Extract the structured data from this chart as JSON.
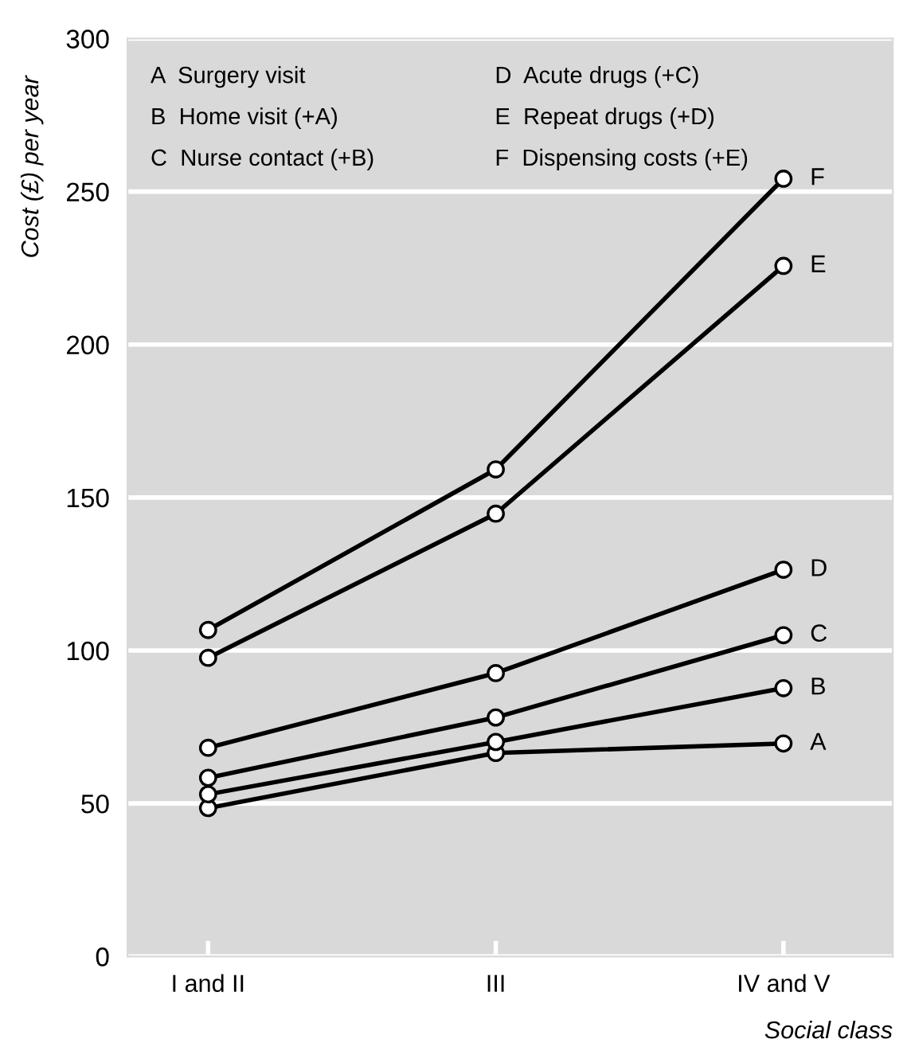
{
  "chart_data": {
    "type": "line",
    "ylabel": "Cost (£) per year",
    "xlabel": "Social class",
    "categories": [
      "I and II",
      "III",
      "IV and V"
    ],
    "series": [
      {
        "name": "A",
        "color": "#000000",
        "values": [
          48.5,
          66.5,
          69.6
        ]
      },
      {
        "name": "B",
        "color": "#000000",
        "values": [
          53,
          70.1,
          87.7
        ]
      },
      {
        "name": "C",
        "color": "#000000",
        "values": [
          58.4,
          78.1,
          105
        ]
      },
      {
        "name": "D",
        "color": "#000000",
        "values": [
          68.2,
          92.6,
          126.4
        ]
      },
      {
        "name": "E",
        "color": "#000000",
        "values": [
          97.6,
          144.7,
          225.7
        ]
      },
      {
        "name": "F",
        "color": "#000000",
        "values": [
          106.7,
          159.2,
          254.2
        ]
      }
    ],
    "annotations": [
      "A  Surgery visit",
      "B  Home visit (+A)",
      "C  Nurse contact (+B)",
      "D  Acute drugs (+C)",
      "E  Repeat drugs (+D)",
      "F  Dispensing costs (+E)"
    ],
    "ylim": [
      0,
      300
    ],
    "yticks": [
      0,
      50,
      100,
      150,
      200,
      250,
      300
    ],
    "grid": "y",
    "legend": false,
    "marker": "circle",
    "line_style": "solid"
  }
}
